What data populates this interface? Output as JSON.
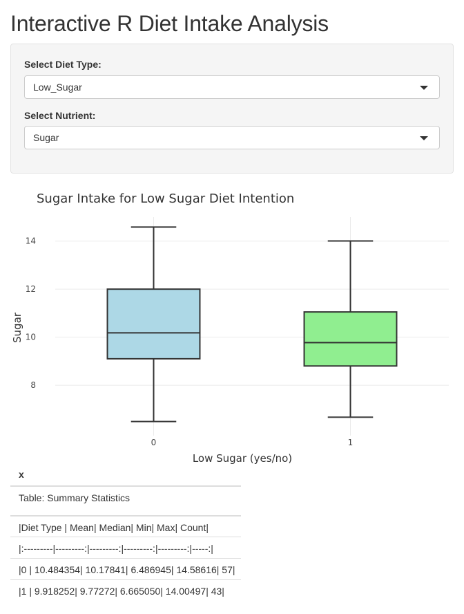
{
  "page": {
    "title": "Interactive R Diet Intake Analysis"
  },
  "controls": {
    "diet_type": {
      "label": "Select Diet Type:",
      "value": "Low_Sugar"
    },
    "nutrient": {
      "label": "Select Nutrient:",
      "value": "Sugar"
    }
  },
  "colors": {
    "box_0": "#add8e6",
    "box_1": "#90ee90",
    "outline": "#333333",
    "grid": "#ebebeb"
  },
  "chart_data": {
    "type": "box",
    "title": "Sugar Intake for Low Sugar Diet Intention",
    "xlabel": "Low Sugar (yes/no)",
    "ylabel": "Sugar",
    "ylim": [
      5.9,
      15.0
    ],
    "yticks": [
      8,
      10,
      12,
      14
    ],
    "categories": [
      "0",
      "1"
    ],
    "grid": true,
    "legend": "none",
    "boxes": [
      {
        "category": "0",
        "min": 6.486945,
        "q1": 9.1,
        "median": 10.17841,
        "q3": 12.0,
        "max": 14.58616
      },
      {
        "category": "1",
        "min": 6.66505,
        "q1": 8.8,
        "median": 9.77272,
        "q3": 11.05,
        "max": 14.00497
      }
    ]
  },
  "summary": {
    "header": "x",
    "rows": [
      "Table: Summary Statistics",
      "|Diet Type | Mean| Median| Min| Max| Count|",
      "|:---------|---------:|---------:|---------:|---------:|-----:|",
      "|0 | 10.484354| 10.17841| 6.486945| 14.58616| 57|",
      "|1 | 9.918252| 9.77272| 6.665050| 14.00497| 43|"
    ]
  }
}
